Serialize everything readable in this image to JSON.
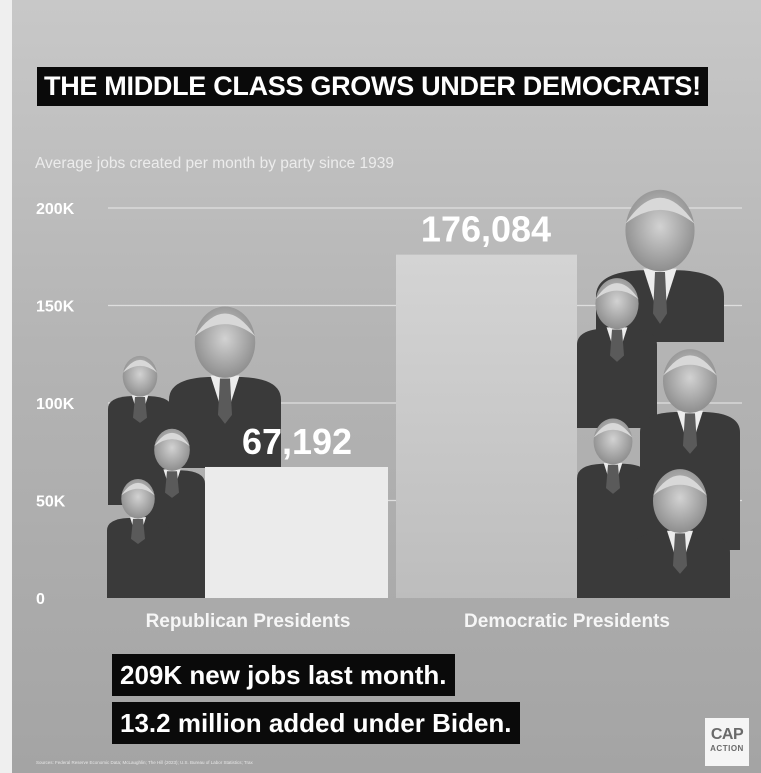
{
  "headline": "THE MIDDLE CLASS GROWS UNDER DEMOCRATS!",
  "subtitle": "Average jobs created per month by party since 1939",
  "chart_data": {
    "type": "bar",
    "title": "THE MIDDLE CLASS GROWS UNDER DEMOCRATS!",
    "subtitle": "Average jobs created per month by party since 1939",
    "categories": [
      "Republican Presidents",
      "Democratic Presidents"
    ],
    "values": [
      67192,
      176084
    ],
    "data_labels": [
      "67,192",
      "176,084"
    ],
    "ylim": [
      0,
      200000
    ],
    "yticks": [
      0,
      50000,
      100000,
      150000,
      200000
    ],
    "ytick_labels": [
      "0",
      "50K",
      "100K",
      "150K",
      "200K"
    ],
    "grid": true,
    "xlabel": "",
    "ylabel": ""
  },
  "callouts": [
    "209K new jobs last month.",
    "13.2 million added under Biden."
  ],
  "source_note": "Sources: Federal Reserve Economic Data; McLaughlin; The Hill (2023); U.S. Bureau of Labor Statistics; Trax",
  "logo": {
    "main": "CAP",
    "sub": "ACTION"
  },
  "photos": {
    "republican": [
      "George W. Bush",
      "Donald Trump",
      "George H. W. Bush",
      "Ronald Reagan"
    ],
    "democratic": [
      "Joe Biden",
      "Barack Obama",
      "Bill Clinton",
      "Lyndon B. Johnson",
      "Franklin D. Roosevelt"
    ]
  },
  "colors": {
    "bar_republican": "#ebebeb",
    "bar_democratic": "#c9c9c9",
    "grid": "#dedede",
    "headline_bg": "#0a0a0a"
  }
}
